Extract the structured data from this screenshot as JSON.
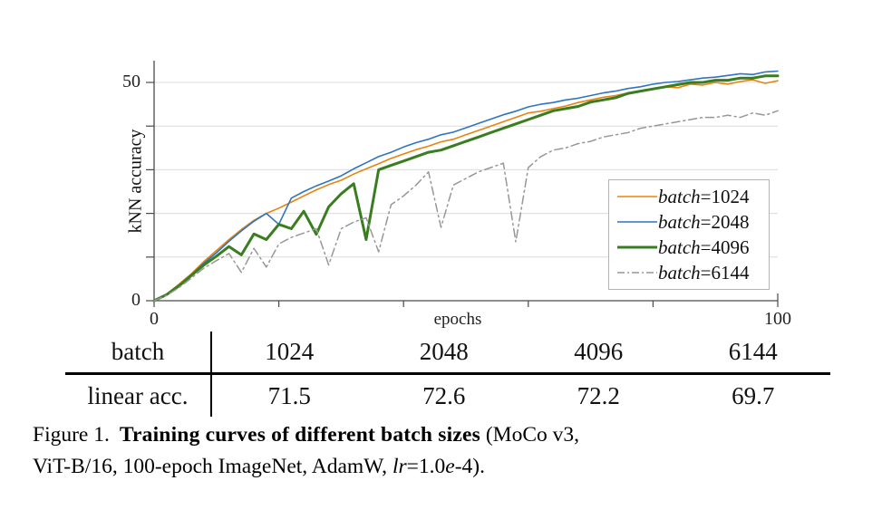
{
  "axes": {
    "ylabel": "kNN accuracy",
    "xlabel": "epochs",
    "y_tick_top": "50",
    "y_tick_bottom": "0",
    "x_tick_left": "0",
    "x_tick_right": "100"
  },
  "legend": {
    "items": [
      {
        "var": "batch",
        "value": "=1024"
      },
      {
        "var": "batch",
        "value": "=2048"
      },
      {
        "var": "batch",
        "value": "=4096"
      },
      {
        "var": "batch",
        "value": "=6144"
      }
    ]
  },
  "table": {
    "header_label": "batch",
    "row_label": "linear acc.",
    "columns": [
      "1024",
      "2048",
      "4096",
      "6144"
    ],
    "values": [
      "71.5",
      "72.6",
      "72.2",
      "69.7"
    ]
  },
  "caption": {
    "label": "Figure 1.",
    "bold": "Training curves of different batch sizes",
    "suffix": " (MoCo v3,",
    "line2_prefix": "ViT-B/16, 100-epoch ImageNet, AdamW, ",
    "lr_italic": "lr",
    "eq": "=1.0",
    "e_italic": "e",
    "line2_suffix": "-4)."
  },
  "chart_data": {
    "type": "line",
    "title": "",
    "xlabel": "epochs",
    "ylabel": "kNN accuracy",
    "xlim": [
      0,
      100
    ],
    "ylim": [
      0,
      55
    ],
    "x_ticks": [
      0,
      20,
      40,
      60,
      80,
      100
    ],
    "x_tick_labels_shown": [
      "0",
      "100"
    ],
    "y_ticks": [
      0,
      10,
      20,
      30,
      40,
      50
    ],
    "y_tick_labels_shown": [
      "0",
      "50"
    ],
    "grid": "horizontal-only",
    "gridline_values": [
      10,
      20,
      30,
      40,
      50
    ],
    "legend_position": "inside lower right",
    "x": [
      0,
      2,
      4,
      6,
      8,
      10,
      12,
      14,
      16,
      18,
      20,
      22,
      24,
      26,
      28,
      30,
      32,
      34,
      36,
      38,
      40,
      42,
      44,
      46,
      48,
      50,
      52,
      54,
      56,
      58,
      60,
      62,
      64,
      66,
      68,
      70,
      72,
      74,
      76,
      78,
      80,
      82,
      84,
      86,
      88,
      90,
      92,
      94,
      96,
      98,
      100
    ],
    "series": [
      {
        "name": "batch=1024",
        "color": "#E8830D",
        "style": "solid",
        "width": 1.6,
        "values": [
          0,
          1.5,
          3.8,
          6.2,
          9,
          11.5,
          14,
          16.3,
          18.4,
          20,
          21.2,
          22.6,
          24,
          25.4,
          26.6,
          27.6,
          29,
          30.2,
          31.4,
          32.6,
          33.6,
          34.6,
          35.4,
          36.4,
          37,
          38,
          39,
          40,
          41,
          42,
          43,
          43.4,
          44,
          44.6,
          45.4,
          46,
          46.6,
          47,
          47.6,
          48,
          48.4,
          49,
          48.8,
          49.6,
          49.4,
          50,
          49.6,
          50.2,
          50.6,
          49.8,
          50.4
        ]
      },
      {
        "name": "batch=2048",
        "color": "#2F74C0",
        "style": "solid",
        "width": 1.6,
        "values": [
          0,
          1.5,
          3.6,
          6,
          8.6,
          11,
          13.6,
          16,
          18.2,
          20,
          17.5,
          23.5,
          25,
          26.3,
          27.4,
          28.6,
          30.2,
          31.6,
          33,
          34,
          35.2,
          36.2,
          37,
          38,
          38.6,
          39.6,
          40.6,
          41.6,
          42.6,
          43.4,
          44.4,
          45,
          45.4,
          46,
          46.4,
          47,
          47.6,
          48,
          48.6,
          49,
          49.6,
          50,
          50.2,
          50.6,
          51,
          51.2,
          51.6,
          52,
          51.8,
          52.4,
          52.6
        ]
      },
      {
        "name": "batch=4096",
        "color": "#3A7D20",
        "style": "solid",
        "width": 3,
        "values": [
          0,
          1.4,
          3.4,
          5.8,
          8.2,
          10.2,
          12.4,
          10.5,
          15.3,
          14,
          17.5,
          16.5,
          20.5,
          15.2,
          21.5,
          24.5,
          26.8,
          14,
          30,
          31,
          32,
          33,
          34,
          34.5,
          35.5,
          36.5,
          37.5,
          38.5,
          39.5,
          40.5,
          41.5,
          42.5,
          43.5,
          44,
          44.5,
          45.5,
          46,
          46.5,
          47.5,
          48,
          48.5,
          49,
          49.5,
          50,
          50,
          50.5,
          50.5,
          51,
          51,
          51.5,
          51.5
        ]
      },
      {
        "name": "batch=6144",
        "color": "#979797",
        "style": "dash-dot",
        "width": 1.5,
        "values": [
          0,
          1.2,
          3,
          5.2,
          7.5,
          9.2,
          10.8,
          6.5,
          12,
          7.7,
          13,
          14.5,
          15.5,
          16.5,
          8.2,
          16.5,
          18,
          19,
          11.2,
          22,
          24,
          26.5,
          29.5,
          16.8,
          26.5,
          28,
          29.5,
          30.5,
          31.5,
          13.5,
          30.5,
          33,
          34.5,
          35,
          36,
          36.5,
          37.5,
          38,
          38.5,
          39.5,
          40,
          40.5,
          41,
          41.5,
          42,
          42,
          42.5,
          42,
          43,
          42.5,
          43.5
        ]
      }
    ]
  }
}
